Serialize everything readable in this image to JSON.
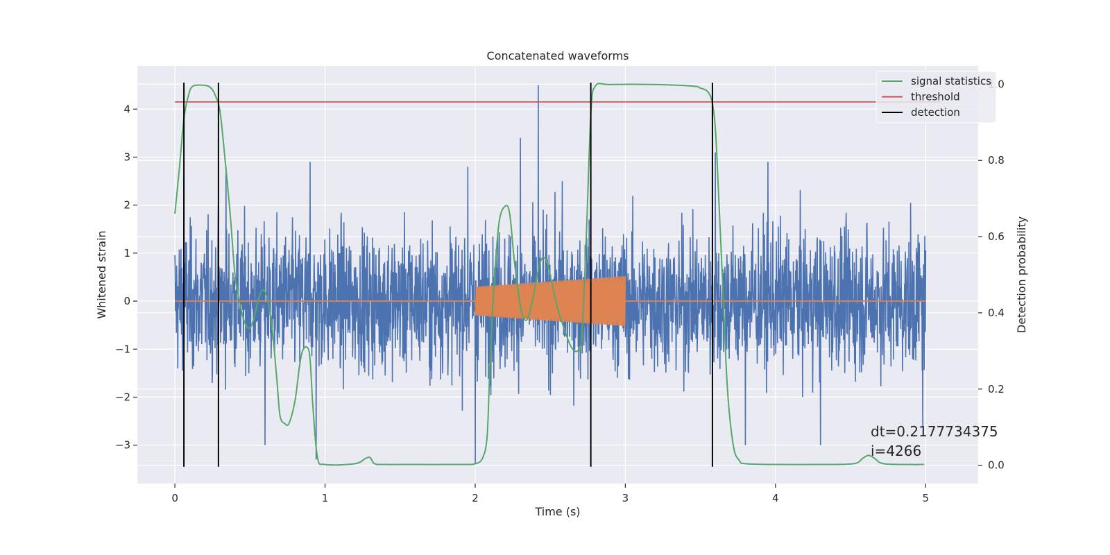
{
  "chart_data": {
    "type": "line",
    "title": "Concatenated waveforms",
    "xlabel": "Time (s)",
    "ylabel": "Whitened strain",
    "y2label": "Detection probability",
    "xlim": [
      -0.25,
      5.35
    ],
    "ylim": [
      -3.8,
      4.9
    ],
    "y2lim": [
      -0.048,
      1.048
    ],
    "x_ticks": [
      "0",
      "1",
      "2",
      "3",
      "4",
      "5"
    ],
    "y_ticks": [
      "−3",
      "−2",
      "−1",
      "0",
      "1",
      "2",
      "3",
      "4"
    ],
    "y2_ticks": [
      "0.0",
      "0.2",
      "0.4",
      "0.6",
      "0.8",
      "1.0"
    ],
    "grid": true,
    "legend_position": "top-right",
    "colors": {
      "strain": "#4c72b0",
      "injection": "#dd8452",
      "signal_statistics": "#55a868",
      "threshold": "#c44e52",
      "detection": "#000000",
      "background": "#eaeaf2"
    },
    "series": [
      {
        "name": "",
        "axis": "left",
        "description": "whitened strain noise",
        "x_range": [
          0,
          5
        ],
        "typical_peak": 2.2,
        "notable_spikes": [
          [
            0.06,
            2.6
          ],
          [
            0.34,
            2.8
          ],
          [
            0.9,
            2.9
          ],
          [
            1.95,
            2.8
          ],
          [
            2.3,
            3.4
          ],
          [
            2.42,
            4.5
          ],
          [
            2.58,
            2.5
          ],
          [
            3.6,
            3.1
          ],
          [
            3.95,
            2.9
          ],
          [
            4.3,
            -3.0
          ],
          [
            2.0,
            -3.4
          ],
          [
            0.6,
            -3.0
          ],
          [
            0.94,
            -3.3
          ],
          [
            3.8,
            -3.0
          ],
          [
            4.98,
            -2.6
          ]
        ]
      },
      {
        "name": "",
        "axis": "left",
        "description": "injected chirp",
        "x_range": [
          2.0,
          3.0
        ],
        "amplitude_start": 0.3,
        "amplitude_end": 0.52
      },
      {
        "name": "signal statistics",
        "axis": "right",
        "x": [
          0,
          0.03,
          0.06,
          0.09,
          0.12,
          0.2,
          0.24,
          0.27,
          0.3,
          0.33,
          0.37,
          0.4,
          0.44,
          0.47,
          0.5,
          0.53,
          0.56,
          0.59,
          0.62,
          0.65,
          0.68,
          0.7,
          0.73,
          0.76,
          0.8,
          0.83,
          0.85,
          0.88,
          0.9,
          0.92,
          0.95,
          1.0,
          1.2,
          1.27,
          1.3,
          1.33,
          1.4,
          1.6,
          1.9,
          2.0,
          2.05,
          2.08,
          2.1,
          2.13,
          2.16,
          2.2,
          2.23,
          2.26,
          2.3,
          2.34,
          2.38,
          2.43,
          2.47,
          2.51,
          2.55,
          2.6,
          2.64,
          2.68,
          2.71,
          2.74,
          2.77,
          2.8,
          2.9,
          3.2,
          3.45,
          3.5,
          3.55,
          3.58,
          3.6,
          3.62,
          3.65,
          3.68,
          3.72,
          3.76,
          3.8,
          4.0,
          4.3,
          4.52,
          4.58,
          4.62,
          4.66,
          4.72,
          4.9,
          4.99
        ],
        "values": [
          0.66,
          0.78,
          0.91,
          0.97,
          0.995,
          0.997,
          0.99,
          0.97,
          0.93,
          0.82,
          0.65,
          0.5,
          0.41,
          0.37,
          0.36,
          0.39,
          0.44,
          0.46,
          0.43,
          0.35,
          0.22,
          0.13,
          0.11,
          0.11,
          0.17,
          0.26,
          0.3,
          0.31,
          0.28,
          0.15,
          0.02,
          0.002,
          0.004,
          0.018,
          0.02,
          0.004,
          0.002,
          0.002,
          0.002,
          0.004,
          0.02,
          0.08,
          0.28,
          0.5,
          0.64,
          0.68,
          0.66,
          0.54,
          0.42,
          0.38,
          0.43,
          0.53,
          0.54,
          0.48,
          0.41,
          0.35,
          0.31,
          0.3,
          0.34,
          0.6,
          0.92,
          0.995,
          0.999,
          0.999,
          0.995,
          0.99,
          0.98,
          0.95,
          0.88,
          0.72,
          0.46,
          0.2,
          0.05,
          0.012,
          0.004,
          0.002,
          0.002,
          0.004,
          0.018,
          0.026,
          0.018,
          0.004,
          0.002,
          0.002
        ]
      },
      {
        "name": "threshold",
        "axis": "left",
        "x": [
          0,
          5.1
        ],
        "values": [
          4.15,
          4.15
        ]
      }
    ],
    "detection_lines": [
      0.06,
      0.29,
      2.77,
      3.58
    ],
    "detection_label": "detection",
    "detection_ymin": -3.45,
    "detection_ymax": 4.55,
    "annotation_text": "dt=0.2177734375\n i=4266"
  }
}
